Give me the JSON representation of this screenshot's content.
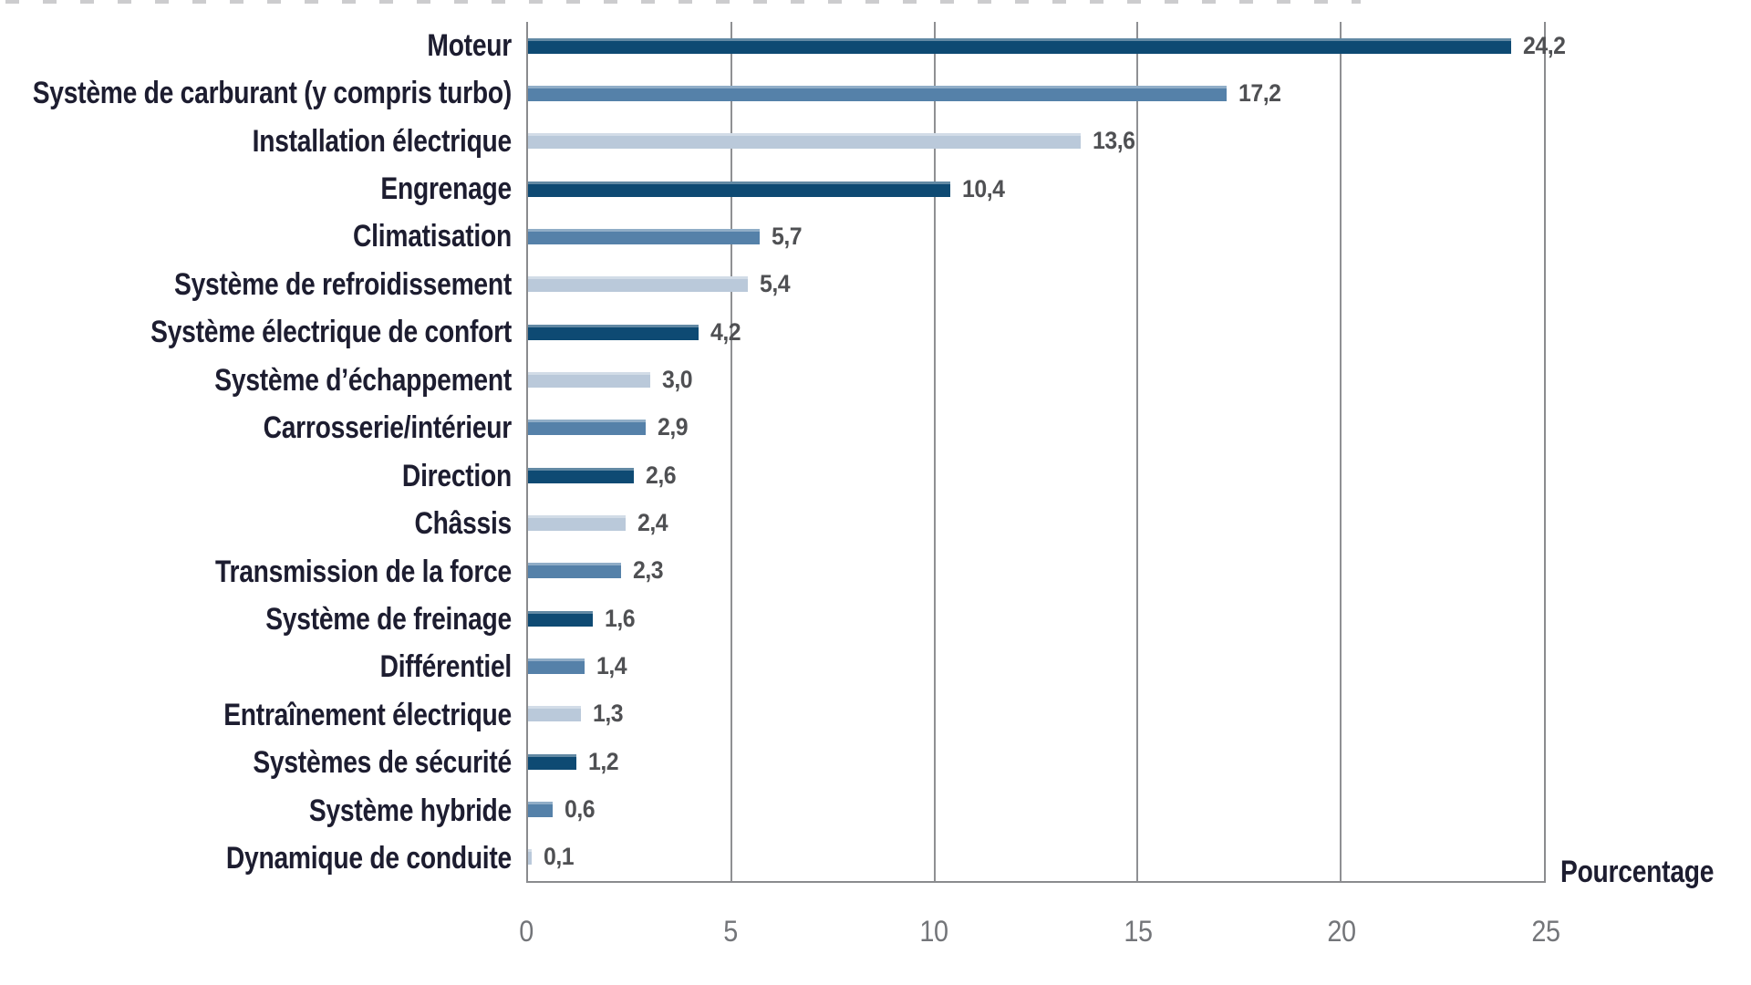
{
  "chart_data": {
    "type": "bar",
    "orientation": "horizontal",
    "title": "",
    "xlabel": "Pourcentage",
    "ylabel": "",
    "xlim": [
      0,
      25
    ],
    "xticks": [
      0,
      5,
      10,
      15,
      20,
      25
    ],
    "xtick_labels": [
      "0",
      "5",
      "10",
      "15",
      "20",
      "25"
    ],
    "grid": "vertical",
    "legend": "none",
    "categories": [
      "Moteur",
      "Système de carburant (y compris turbo)",
      "Installation électrique",
      "Engrenage",
      "Climatisation",
      "Système de refroidissement",
      "Système électrique de confort",
      "Système d’échappement",
      "Carrosserie/intérieur",
      "Direction",
      "Châssis",
      "Transmission de la force",
      "Système de freinage",
      "Différentiel",
      "Entraînement électrique",
      "Systèmes de sécurité",
      "Système hybride",
      "Dynamique de conduite"
    ],
    "values": [
      24.2,
      17.2,
      13.6,
      10.4,
      5.7,
      5.4,
      4.2,
      3.0,
      2.9,
      2.6,
      2.4,
      2.3,
      1.6,
      1.4,
      1.3,
      1.2,
      0.6,
      0.1
    ],
    "value_labels": [
      "24,2",
      "17,2",
      "13,6",
      "10,4",
      "5,7",
      "5,4",
      "4,2",
      "3,0",
      "2,9",
      "2,6",
      "2,4",
      "2,3",
      "1,6",
      "1,4",
      "1,3",
      "1,2",
      "0,6",
      "0,1"
    ],
    "bar_color_keys": [
      "dark",
      "medium",
      "light",
      "dark",
      "medium",
      "light",
      "dark",
      "light",
      "medium",
      "dark",
      "light",
      "medium",
      "dark",
      "medium",
      "light",
      "dark",
      "medium",
      "light"
    ],
    "palette": {
      "dark": "#0E4A73",
      "medium": "#5581A9",
      "light": "#BAC9DA"
    },
    "gridline_color": "#8F9093",
    "value_label_color": "#4F5053",
    "category_label_color": "#1D1D30",
    "tick_label_color": "#737579"
  }
}
